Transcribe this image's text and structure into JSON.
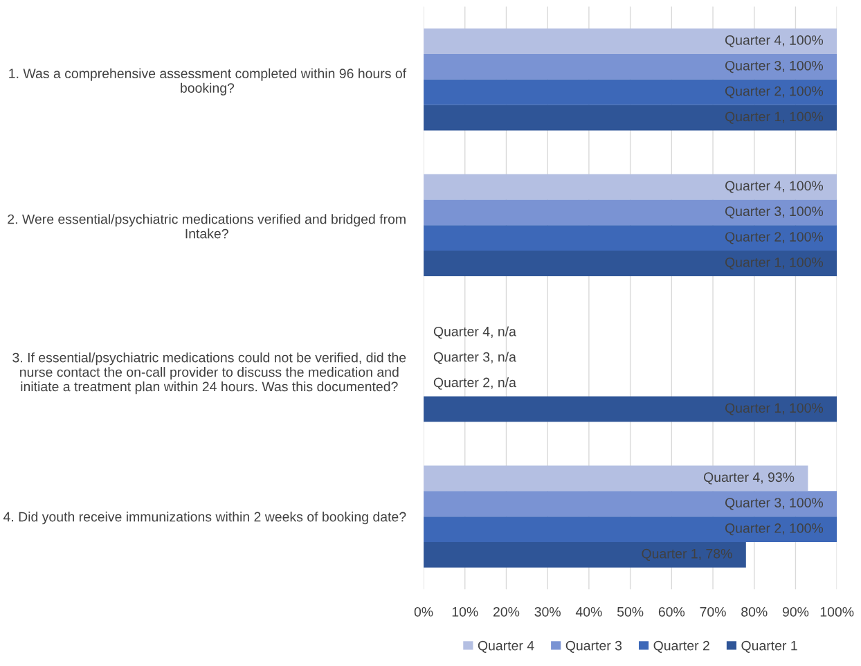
{
  "chart_data": {
    "type": "bar",
    "orientation": "horizontal",
    "categories": [
      "1. Was a comprehensive assessment completed within 96 hours of booking?",
      "2. Were essential/psychiatric medications verified and bridged from Intake?",
      "3. If essential/psychiatric medications could not be verified, did the nurse contact the on-call provider to discuss the medication and initiate a treatment plan within 24 hours. Was this documented?",
      "4. Did youth receive immunizations within 2 weeks of booking date?"
    ],
    "series": [
      {
        "name": "Quarter 4",
        "color": "#b4bfe2",
        "values": [
          100,
          100,
          null,
          93
        ],
        "value_labels": [
          "Quarter 4, 100%",
          "Quarter 4, 100%",
          "Quarter 4, n/a",
          "Quarter 4, 93%"
        ]
      },
      {
        "name": "Quarter 3",
        "color": "#7a93d3",
        "values": [
          100,
          100,
          null,
          100
        ],
        "value_labels": [
          "Quarter 3, 100%",
          "Quarter 3, 100%",
          "Quarter 3, n/a",
          "Quarter 3, 100%"
        ]
      },
      {
        "name": "Quarter 2",
        "color": "#3d68b8",
        "values": [
          100,
          100,
          null,
          100
        ],
        "value_labels": [
          "Quarter 2, 100%",
          "Quarter 2, 100%",
          "Quarter 2, n/a",
          "Quarter 2, 100%"
        ]
      },
      {
        "name": "Quarter 1",
        "color": "#2f5597",
        "values": [
          100,
          100,
          100,
          78
        ],
        "value_labels": [
          "Quarter 1, 100%",
          "Quarter 1, 100%",
          "Quarter 1, 100%",
          "Quarter 1, 78%"
        ]
      }
    ],
    "xlim": [
      0,
      100
    ],
    "xticks": [
      {
        "value": 0,
        "label": "0%"
      },
      {
        "value": 10,
        "label": "10%"
      },
      {
        "value": 20,
        "label": "20%"
      },
      {
        "value": 30,
        "label": "30%"
      },
      {
        "value": 40,
        "label": "40%"
      },
      {
        "value": 50,
        "label": "50%"
      },
      {
        "value": 60,
        "label": "60%"
      },
      {
        "value": 70,
        "label": "70%"
      },
      {
        "value": 80,
        "label": "80%"
      },
      {
        "value": 90,
        "label": "90%"
      },
      {
        "value": 100,
        "label": "100%"
      }
    ],
    "grid": "x",
    "legend": "bottom"
  }
}
